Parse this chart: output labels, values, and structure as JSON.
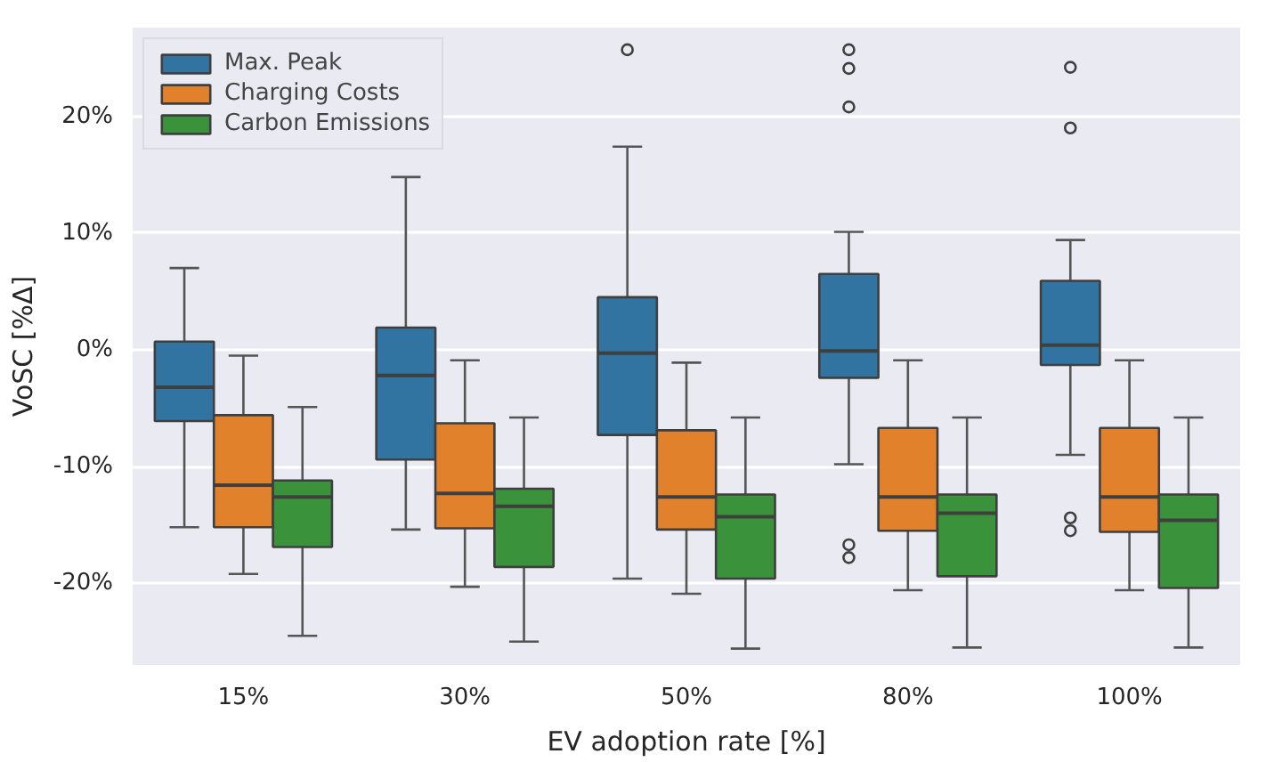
{
  "chart_data": {
    "type": "box",
    "xlabel": "EV adoption rate [%]",
    "ylabel": "VoSC [%Δ]",
    "categories": [
      "15%",
      "30%",
      "50%",
      "80%",
      "100%"
    ],
    "ylim": [
      -27,
      27.6
    ],
    "yticks": [
      {
        "value": -20,
        "label": "-20%"
      },
      {
        "value": -10,
        "label": "-10%"
      },
      {
        "value": 0,
        "label": "0%"
      },
      {
        "value": 10,
        "label": "10%"
      },
      {
        "value": 20,
        "label": "20%"
      }
    ],
    "grid": "y",
    "legend": "top left",
    "series": [
      {
        "name": "Max. Peak",
        "color": "#3274a1",
        "boxes": [
          {
            "low": -15.2,
            "q1": -6.1,
            "median": -3.2,
            "q3": 0.7,
            "high": 7.0
          },
          {
            "low": -15.4,
            "q1": -9.4,
            "median": -2.2,
            "q3": 1.9,
            "high": 14.8
          },
          {
            "low": -19.6,
            "q1": -7.3,
            "median": -0.3,
            "q3": 4.5,
            "high": 17.4,
            "outliers": [
              25.7
            ]
          },
          {
            "low": -9.8,
            "q1": -2.4,
            "median": -0.1,
            "q3": 6.5,
            "high": 10.1,
            "outliers": [
              25.7,
              24.1,
              20.8,
              -16.7,
              -17.8
            ]
          },
          {
            "low": -9.0,
            "q1": -1.3,
            "median": 0.4,
            "q3": 5.9,
            "high": 9.4,
            "outliers": [
              24.2,
              19.0,
              -14.4,
              -15.5
            ]
          }
        ]
      },
      {
        "name": "Charging Costs",
        "color": "#e1812c",
        "boxes": [
          {
            "low": -19.2,
            "q1": -15.2,
            "median": -11.6,
            "q3": -5.6,
            "high": -0.5
          },
          {
            "low": -20.3,
            "q1": -15.3,
            "median": -12.3,
            "q3": -6.3,
            "high": -0.9
          },
          {
            "low": -20.9,
            "q1": -15.4,
            "median": -12.6,
            "q3": -6.9,
            "high": -1.1
          },
          {
            "low": -20.6,
            "q1": -15.5,
            "median": -12.6,
            "q3": -6.7,
            "high": -0.9
          },
          {
            "low": -20.6,
            "q1": -15.6,
            "median": -12.6,
            "q3": -6.7,
            "high": -0.9
          }
        ]
      },
      {
        "name": "Carbon Emissions",
        "color": "#3a923a",
        "boxes": [
          {
            "low": -24.5,
            "q1": -16.9,
            "median": -12.6,
            "q3": -11.2,
            "high": -4.9
          },
          {
            "low": -25.0,
            "q1": -18.6,
            "median": -13.4,
            "q3": -11.9,
            "high": -5.8
          },
          {
            "low": -25.6,
            "q1": -19.6,
            "median": -14.3,
            "q3": -12.4,
            "high": -5.8
          },
          {
            "low": -25.5,
            "q1": -19.4,
            "median": -14.0,
            "q3": -12.4,
            "high": -5.8
          },
          {
            "low": -25.5,
            "q1": -20.4,
            "median": -14.6,
            "q3": -12.4,
            "high": -5.8
          }
        ]
      }
    ]
  }
}
